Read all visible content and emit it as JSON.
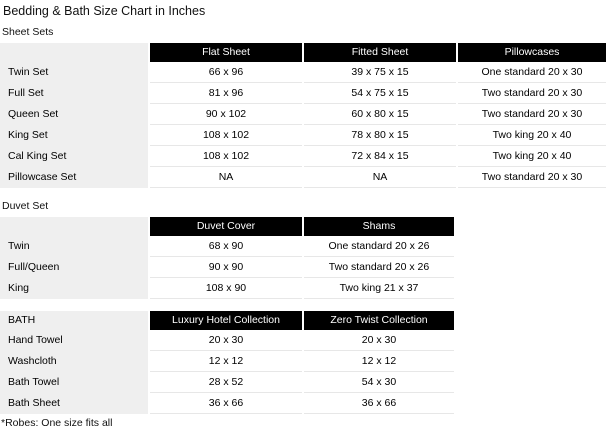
{
  "page": {
    "title": "Bedding & Bath Size Chart in Inches",
    "footnote": "*Robes: One size fits all"
  },
  "colors": {
    "header_bg": "#000000",
    "header_text": "#ffffff",
    "label_column_bg": "#efefef",
    "row_border": "#e7e7e7"
  },
  "sheet_sets": {
    "section_label": "Sheet Sets",
    "columns": [
      "Flat Sheet",
      "Fitted Sheet",
      "Pillowcases"
    ],
    "rows": [
      {
        "label": "Twin Set",
        "cells": [
          "66 x 96",
          "39 x 75 x 15",
          "One standard 20 x 30"
        ]
      },
      {
        "label": "Full Set",
        "cells": [
          "81 x 96",
          "54 x 75 x 15",
          "Two standard 20 x 30"
        ]
      },
      {
        "label": "Queen Set",
        "cells": [
          "90 x 102",
          "60 x 80 x 15",
          "Two standard 20 x 30"
        ]
      },
      {
        "label": "King Set",
        "cells": [
          "108 x 102",
          "78 x 80 x 15",
          "Two king 20 x 40"
        ]
      },
      {
        "label": "Cal King Set",
        "cells": [
          "108 x 102",
          "72 x 84 x 15",
          "Two king 20 x 40"
        ]
      },
      {
        "label": "Pillowcase Set",
        "cells": [
          "NA",
          "NA",
          "Two standard 20 x 30"
        ]
      }
    ]
  },
  "duvet_set": {
    "section_label": "Duvet Set",
    "columns": [
      "Duvet Cover",
      "Shams"
    ],
    "rows": [
      {
        "label": "Twin",
        "cells": [
          "68 x 90",
          "One standard 20 x 26"
        ]
      },
      {
        "label": "Full/Queen",
        "cells": [
          "90 x 90",
          "Two standard 20 x 26"
        ]
      },
      {
        "label": "King",
        "cells": [
          "108 x 90",
          "Two king 21 x 37"
        ]
      }
    ]
  },
  "bath": {
    "label_header": "BATH",
    "columns": [
      "Luxury Hotel Collection",
      "Zero Twist Collection"
    ],
    "rows": [
      {
        "label": "Hand Towel",
        "cells": [
          "20 x 30",
          "20 x 30"
        ]
      },
      {
        "label": "Washcloth",
        "cells": [
          "12 x 12",
          "12 x 12"
        ]
      },
      {
        "label": "Bath Towel",
        "cells": [
          "28 x 52",
          "54 x 30"
        ]
      },
      {
        "label": "Bath Sheet",
        "cells": [
          "36 x 66",
          "36 x 66"
        ]
      }
    ]
  }
}
